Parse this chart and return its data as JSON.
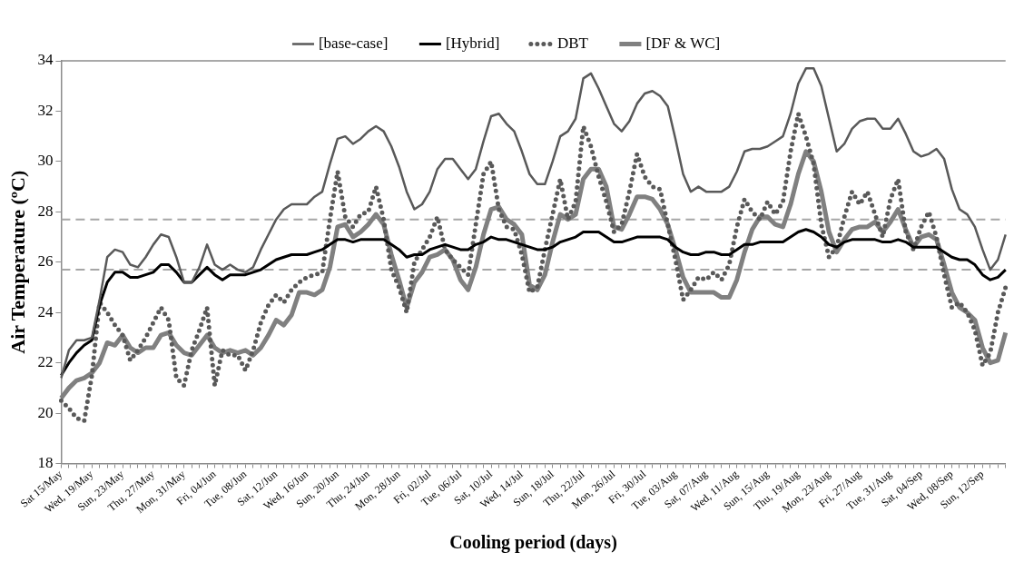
{
  "chart_data": {
    "type": "line",
    "xlabel": "Cooling period (days)",
    "ylabel": "Air Temperature (ºC)",
    "categories": [
      "Sat 15/May",
      null,
      null,
      null,
      "Wed, 19/May",
      null,
      null,
      null,
      "Sun, 23/May",
      null,
      null,
      null,
      "Thu, 27/May",
      null,
      null,
      null,
      "Mon, 31/May",
      null,
      null,
      null,
      "Fri, 04/Jun",
      null,
      null,
      null,
      "Tue, 08/Jun",
      null,
      null,
      null,
      "Sat, 12/Jun",
      null,
      null,
      null,
      "Wed, 16/Jun",
      null,
      null,
      null,
      "Sun, 20/Jun",
      null,
      null,
      null,
      "Thu, 24/Jun",
      null,
      null,
      null,
      "Mon, 28/Jun",
      null,
      null,
      null,
      "Fri, 02/Jul",
      null,
      null,
      null,
      "Tue, 06/Jul",
      null,
      null,
      null,
      "Sat, 10/Jul",
      null,
      null,
      null,
      "Wed, 14/Jul",
      null,
      null,
      null,
      "Sun, 18/Jul",
      null,
      null,
      null,
      "Thu, 22/Jul",
      null,
      null,
      null,
      "Mon, 26/Jul",
      null,
      null,
      null,
      "Fri, 30/Jul",
      null,
      null,
      null,
      "Tue, 03/Aug",
      null,
      null,
      null,
      "Sat, 07/Aug",
      null,
      null,
      null,
      "Wed, 11/Aug",
      null,
      null,
      null,
      "Sun, 15/Aug",
      null,
      null,
      null,
      "Thu, 19/Aug",
      null,
      null,
      null,
      "Mon, 23/Aug",
      null,
      null,
      null,
      "Fri, 27/Aug",
      null,
      null,
      null,
      "Tue, 31/Aug",
      null,
      null,
      null,
      "Sat, 04/Sep",
      null,
      null,
      null,
      "Wed, 08/Sep",
      null,
      null,
      null,
      "Sun, 12/Sep",
      null,
      null,
      null
    ],
    "series": [
      {
        "name": "[base-case]",
        "color": "#595959",
        "line_style": "solid",
        "values": [
          21.4,
          22.5,
          22.9,
          22.9,
          23.0,
          24.5,
          26.2,
          26.5,
          26.4,
          25.9,
          25.8,
          26.2,
          26.7,
          27.1,
          27.0,
          26.2,
          25.2,
          25.2,
          25.8,
          26.7,
          25.9,
          25.7,
          25.9,
          25.7,
          25.6,
          25.8,
          26.5,
          27.1,
          27.7,
          28.1,
          28.3,
          28.3,
          28.3,
          28.6,
          28.8,
          29.9,
          30.9,
          31.0,
          30.7,
          30.9,
          31.2,
          31.4,
          31.2,
          30.6,
          29.8,
          28.8,
          28.1,
          28.3,
          28.8,
          29.7,
          30.1,
          30.1,
          29.7,
          29.3,
          29.7,
          30.8,
          31.8,
          31.9,
          31.5,
          31.2,
          30.4,
          29.5,
          29.1,
          29.1,
          30.0,
          31.0,
          31.2,
          31.7,
          33.3,
          33.5,
          32.9,
          32.2,
          31.5,
          31.2,
          31.6,
          32.3,
          32.7,
          32.8,
          32.6,
          32.2,
          30.9,
          29.5,
          28.8,
          29.0,
          28.8,
          28.8,
          28.8,
          29.0,
          29.6,
          30.4,
          30.5,
          30.5,
          30.6,
          30.8,
          31.0,
          31.9,
          33.1,
          33.7,
          33.7,
          33.0,
          31.7,
          30.4,
          30.7,
          31.3,
          31.6,
          31.7,
          31.7,
          31.3,
          31.3,
          31.7,
          31.1,
          30.4,
          30.2,
          30.3,
          30.5,
          30.1,
          28.9,
          28.1,
          27.9,
          27.4,
          26.5,
          25.7,
          26.1,
          27.1
        ]
      },
      {
        "name": "[Hybrid]",
        "color": "#000000",
        "line_style": "solid",
        "values": [
          21.5,
          22.0,
          22.4,
          22.7,
          22.9,
          24.3,
          25.2,
          25.6,
          25.6,
          25.4,
          25.4,
          25.5,
          25.6,
          25.9,
          25.9,
          25.6,
          25.2,
          25.2,
          25.5,
          25.8,
          25.5,
          25.3,
          25.5,
          25.5,
          25.5,
          25.6,
          25.7,
          25.9,
          26.1,
          26.2,
          26.3,
          26.3,
          26.3,
          26.4,
          26.5,
          26.7,
          26.9,
          26.9,
          26.8,
          26.9,
          26.9,
          26.9,
          26.9,
          26.7,
          26.5,
          26.2,
          26.3,
          26.3,
          26.5,
          26.6,
          26.7,
          26.6,
          26.5,
          26.5,
          26.7,
          26.8,
          27.0,
          26.9,
          26.9,
          26.8,
          26.7,
          26.6,
          26.5,
          26.5,
          26.6,
          26.8,
          26.9,
          27.0,
          27.2,
          27.2,
          27.2,
          27.0,
          26.8,
          26.8,
          26.9,
          27.0,
          27.0,
          27.0,
          27.0,
          26.9,
          26.6,
          26.4,
          26.3,
          26.3,
          26.4,
          26.4,
          26.3,
          26.3,
          26.5,
          26.7,
          26.7,
          26.8,
          26.8,
          26.8,
          26.8,
          27.0,
          27.2,
          27.3,
          27.2,
          27.0,
          26.7,
          26.6,
          26.8,
          26.9,
          26.9,
          26.9,
          26.9,
          26.8,
          26.8,
          26.9,
          26.8,
          26.6,
          26.6,
          26.6,
          26.6,
          26.4,
          26.2,
          26.1,
          26.1,
          25.9,
          25.5,
          25.3,
          25.4,
          25.7
        ]
      },
      {
        "name": "DBT",
        "color": "#595959",
        "line_style": "dotted",
        "values": [
          20.5,
          20.2,
          19.8,
          19.7,
          21.5,
          24.4,
          24.0,
          23.5,
          23.1,
          22.1,
          22.5,
          23.0,
          23.6,
          24.2,
          23.7,
          21.4,
          21.1,
          22.5,
          23.3,
          24.2,
          21.1,
          22.5,
          22.3,
          22.3,
          21.7,
          22.5,
          23.6,
          24.3,
          24.7,
          24.4,
          24.9,
          25.2,
          25.4,
          25.5,
          25.6,
          27.7,
          29.6,
          27.8,
          27.4,
          27.9,
          28.0,
          29.0,
          27.7,
          25.7,
          25.0,
          24.0,
          26.0,
          26.5,
          27.0,
          27.8,
          26.5,
          26.1,
          25.8,
          25.5,
          27.5,
          29.5,
          30.0,
          28.1,
          27.4,
          27.3,
          26.3,
          24.8,
          25.0,
          26.5,
          27.9,
          29.3,
          27.7,
          28.4,
          31.4,
          30.6,
          29.4,
          28.4,
          27.2,
          27.5,
          28.8,
          30.3,
          29.4,
          29.0,
          28.9,
          27.5,
          26.1,
          24.5,
          24.9,
          25.4,
          25.3,
          25.6,
          25.3,
          25.9,
          27.4,
          28.5,
          28.0,
          27.7,
          28.4,
          27.9,
          28.4,
          30.4,
          31.9,
          31.0,
          29.9,
          27.5,
          26.2,
          26.6,
          27.8,
          28.8,
          28.3,
          28.8,
          27.9,
          27.0,
          28.5,
          29.3,
          27.2,
          26.5,
          27.4,
          28.0,
          27.0,
          25.5,
          24.2,
          24.4,
          24.0,
          23.3,
          21.9,
          22.4,
          24.0,
          25.0
        ]
      },
      {
        "name": "[DF & WC]",
        "color": "#808080",
        "line_style": "solid",
        "values": [
          20.6,
          21.0,
          21.3,
          21.4,
          21.6,
          22.0,
          22.8,
          22.7,
          23.1,
          22.6,
          22.4,
          22.6,
          22.6,
          23.1,
          23.2,
          22.7,
          22.4,
          22.3,
          22.7,
          23.1,
          22.6,
          22.4,
          22.5,
          22.4,
          22.5,
          22.3,
          22.6,
          23.1,
          23.7,
          23.5,
          23.9,
          24.8,
          24.8,
          24.7,
          24.9,
          25.8,
          27.4,
          27.5,
          27.0,
          27.2,
          27.5,
          27.9,
          27.5,
          26.3,
          25.3,
          24.2,
          25.2,
          25.6,
          26.2,
          26.3,
          26.5,
          26.1,
          25.3,
          24.9,
          25.8,
          27.1,
          28.1,
          28.2,
          27.7,
          27.5,
          27.1,
          25.1,
          24.9,
          25.5,
          26.8,
          27.9,
          27.7,
          27.9,
          29.3,
          29.7,
          29.7,
          29.0,
          27.4,
          27.3,
          27.9,
          28.6,
          28.6,
          28.5,
          28.1,
          27.5,
          26.5,
          25.4,
          24.8,
          24.8,
          24.8,
          24.8,
          24.6,
          24.6,
          25.3,
          26.4,
          27.3,
          27.8,
          27.8,
          27.5,
          27.4,
          28.3,
          29.5,
          30.4,
          30.0,
          28.8,
          27.2,
          26.4,
          26.9,
          27.3,
          27.4,
          27.4,
          27.6,
          27.2,
          27.6,
          28.1,
          27.3,
          26.6,
          27.0,
          27.1,
          26.9,
          25.9,
          24.8,
          24.2,
          24.0,
          23.7,
          22.6,
          22.0,
          22.1,
          23.2
        ]
      }
    ],
    "ylim": [
      18,
      34
    ],
    "yticks": [
      18,
      20,
      22,
      24,
      26,
      28,
      30,
      32,
      34
    ],
    "ref_lines": [
      {
        "axis": "y",
        "value": 27.7,
        "color": "#a6a6a6",
        "line_style": "dashed"
      },
      {
        "axis": "y",
        "value": 25.7,
        "color": "#a6a6a6",
        "line_style": "dashed"
      }
    ],
    "legend": "top",
    "marker": "none"
  }
}
